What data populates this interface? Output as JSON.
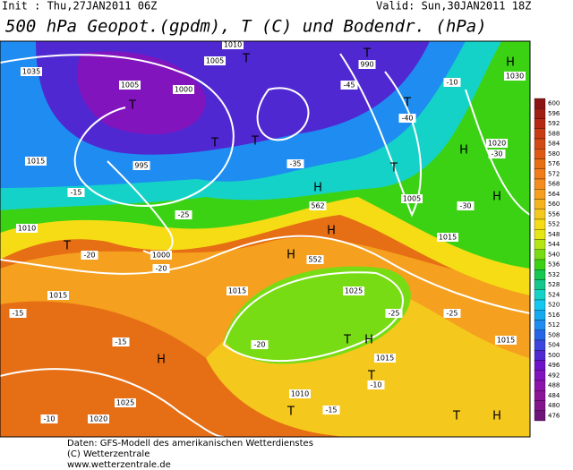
{
  "header": {
    "init": "Init : Thu,27JAN2011 06Z",
    "valid": "Valid: Sun,30JAN2011 18Z",
    "title": "500 hPa Geopot.(gpdm), T (C) und Bodendr. (hPa)"
  },
  "map_labels": [
    "1035",
    "1005",
    "1010",
    "1005",
    "1000",
    "1015",
    "1010",
    "1015",
    "-15",
    "-20",
    "-15",
    "-15",
    "1025",
    "-10",
    "1020",
    "-25",
    "1000",
    "-20",
    "1015",
    "1025",
    "-25",
    "-20",
    "1015",
    "-10",
    "-15",
    "1010",
    "-30",
    "1015",
    "-25",
    "1015",
    "-10",
    "1030",
    "-45",
    "-40",
    "1020",
    "-30",
    "990",
    "995",
    "1005",
    "-35",
    "562",
    "552"
  ],
  "pressure_centers": [
    "T",
    "T",
    "T",
    "T",
    "T",
    "T",
    "T",
    "T",
    "H",
    "H",
    "H",
    "H",
    "H",
    "H",
    "T",
    "T",
    "H",
    "T",
    "T",
    "H",
    "H"
  ],
  "colorbar": {
    "levels": [
      600,
      596,
      592,
      588,
      584,
      580,
      576,
      572,
      568,
      564,
      560,
      556,
      552,
      548,
      544,
      540,
      536,
      532,
      528,
      524,
      520,
      516,
      512,
      508,
      504,
      500,
      496,
      492,
      488,
      484,
      480,
      476
    ],
    "colors": [
      "#8c1414",
      "#a01e14",
      "#b42814",
      "#c83c14",
      "#d24a14",
      "#dc5a14",
      "#e66e14",
      "#f07d19",
      "#f58c1e",
      "#f5a01e",
      "#f5b41e",
      "#f5c81e",
      "#f5dc14",
      "#e6e614",
      "#b4e614",
      "#78dc14",
      "#3cd214",
      "#14c850",
      "#14c88c",
      "#14d2c8",
      "#14c8f0",
      "#14aaf0",
      "#1e8cf0",
      "#2864e6",
      "#3c46dc",
      "#5028d2",
      "#6e14c8",
      "#8214be",
      "#8c14aa",
      "#8c1496",
      "#82148c",
      "#6e1478"
    ]
  },
  "footer": [
    "Daten: GFS-Modell des amerikanischen Wetterdienstes",
    "(C) Wetterzentrale",
    "www.wetterzentrale.de"
  ]
}
